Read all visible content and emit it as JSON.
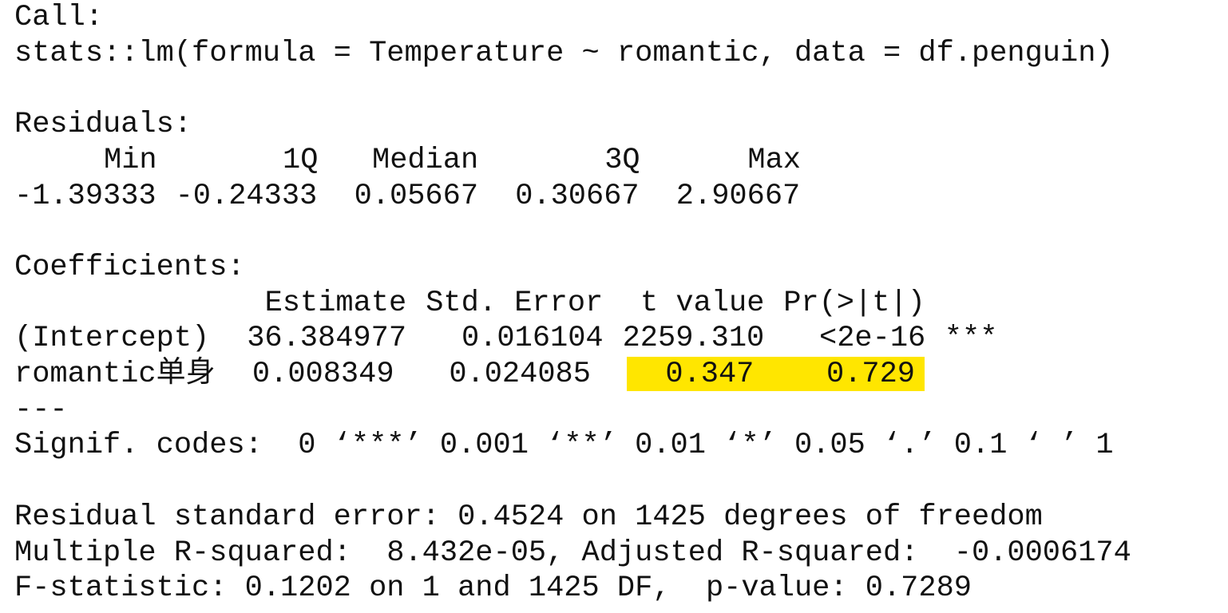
{
  "call": {
    "label": "Call:",
    "formula": "stats::lm(formula = Temperature ~ romantic, data = df.penguin)"
  },
  "residuals": {
    "label": "Residuals:",
    "headers": [
      "Min",
      "1Q",
      "Median",
      "3Q",
      "Max"
    ],
    "values": [
      "-1.39333",
      "-0.24333",
      "0.05667",
      "0.30667",
      "2.90667"
    ]
  },
  "coefficients": {
    "label": "Coefficients:",
    "headers": [
      "Estimate",
      "Std. Error",
      "t value",
      "Pr(>|t|)"
    ],
    "rows": [
      [
        "(Intercept)",
        "36.384977",
        "0.016104",
        "2259.310",
        "<2e-16",
        "***"
      ],
      [
        "romantic单身",
        "0.008349",
        "0.024085",
        "0.347",
        "0.729"
      ]
    ]
  },
  "separator": "---",
  "signif_codes": "Signif. codes:  0 ‘***’ 0.001 ‘**’ 0.01 ‘*’ 0.05 ‘.’ 0.1 ‘ ’ 1",
  "summary": [
    "Residual standard error: 0.4524 on 1425 degrees of freedom",
    "Multiple R-squared:  8.432e-05,\tAdjusted R-squared:  -0.0006174",
    "F-statistic: 0.1202 on 1 and 1425 DF,  p-value: 0.7289"
  ]
}
